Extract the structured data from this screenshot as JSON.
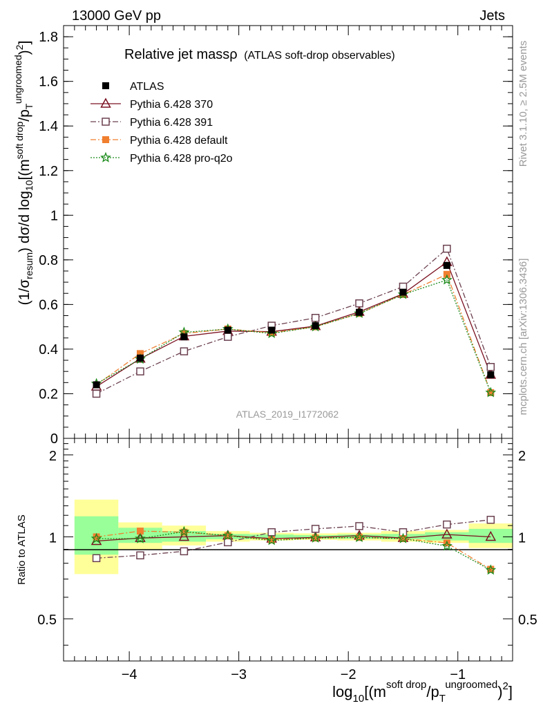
{
  "header": {
    "left": "13000 GeV pp",
    "right": "Jets"
  },
  "side_text": {
    "rivet": "Rivet 3.1.10, ≥ 2.5M events",
    "mcplots": "mcplots.cern.ch [arXiv:1306.3436]"
  },
  "chart_data": [
    {
      "type": "line",
      "title": "Relative jet massρ",
      "subtitle": "(ATLAS soft-drop observables)",
      "watermark": "ATLAS_2019_I1772062",
      "ylabel": "(1/σresum) dσ/d log10[(m soft drop/pT ungroomed)2]",
      "ylim": [
        0,
        1.85
      ],
      "yticks": [
        "0",
        "0.2",
        "0.4",
        "0.6",
        "0.8",
        "1",
        "1.2",
        "1.4",
        "1.6",
        "1.8"
      ],
      "xlim": [
        -4.6,
        -0.5
      ],
      "x": [
        -4.3,
        -3.9,
        -3.5,
        -3.1,
        -2.7,
        -2.3,
        -1.9,
        -1.5,
        -1.1,
        -0.7
      ],
      "legend_placement": "top-left",
      "series": [
        {
          "name": "ATLAS",
          "color": "#000000",
          "marker": "filled-square",
          "values": [
            0.24,
            0.36,
            0.455,
            0.485,
            0.485,
            0.505,
            0.565,
            0.655,
            0.775,
            0.285
          ]
        },
        {
          "name": "Pythia 6.428 370",
          "color": "#7a1020",
          "marker": "open-triangle",
          "dash": "solid",
          "values": [
            0.232,
            0.357,
            0.457,
            0.481,
            0.478,
            0.503,
            0.567,
            0.648,
            0.79,
            0.285
          ]
        },
        {
          "name": "Pythia 6.428 391",
          "color": "#6b4050",
          "marker": "open-square",
          "dash": "dashdot",
          "values": [
            0.2,
            0.3,
            0.39,
            0.455,
            0.505,
            0.54,
            0.605,
            0.68,
            0.85,
            0.32
          ]
        },
        {
          "name": "Pythia 6.428 default",
          "color": "#f07f2f",
          "marker": "filled-square",
          "dash": "dashdot",
          "values": [
            0.24,
            0.38,
            0.47,
            0.49,
            0.473,
            0.5,
            0.56,
            0.645,
            0.735,
            0.205
          ]
        },
        {
          "name": "Pythia 6.428 pro-q2o",
          "color": "#1a8a1a",
          "marker": "star",
          "dash": "dotted",
          "values": [
            0.245,
            0.355,
            0.475,
            0.49,
            0.47,
            0.5,
            0.56,
            0.645,
            0.71,
            0.205
          ]
        }
      ]
    },
    {
      "type": "line",
      "ylabel": "Ratio to ATLAS",
      "ylim": [
        0.35,
        2.3
      ],
      "yscale": "log",
      "yticks": [
        "0.5",
        "1",
        "2"
      ],
      "xlabel": "log10[(m soft drop/pT ungroomed)2]",
      "xticks": [
        "−4",
        "−3",
        "−2",
        "−1"
      ],
      "xlim": [
        -4.6,
        -0.5
      ],
      "bands": {
        "edges": [
          -4.5,
          -4.1,
          -3.7,
          -3.3,
          -2.9,
          -2.5,
          -2.1,
          -1.7,
          -1.3,
          -0.9,
          -0.5
        ],
        "outer": [
          [
            0.73,
            1.37
          ],
          [
            0.9,
            1.13
          ],
          [
            0.93,
            1.1
          ],
          [
            0.96,
            1.05
          ],
          [
            0.97,
            1.035
          ],
          [
            0.975,
            1.03
          ],
          [
            0.97,
            1.035
          ],
          [
            0.96,
            1.05
          ],
          [
            0.95,
            1.06
          ],
          [
            0.91,
            1.12
          ]
        ],
        "inner": [
          [
            0.86,
            1.19
          ],
          [
            0.95,
            1.08
          ],
          [
            0.96,
            1.05
          ],
          [
            0.98,
            1.025
          ],
          [
            0.985,
            1.02
          ],
          [
            0.985,
            1.015
          ],
          [
            0.985,
            1.02
          ],
          [
            0.98,
            1.025
          ],
          [
            0.97,
            1.04
          ],
          [
            0.95,
            1.07
          ]
        ],
        "outer_color": "#ffff99",
        "inner_color": "#99ff99"
      },
      "x": [
        -4.3,
        -3.9,
        -3.5,
        -3.1,
        -2.7,
        -2.3,
        -1.9,
        -1.5,
        -1.1,
        -0.7
      ],
      "series": [
        {
          "name": "Pythia 6.428 370",
          "color": "#7a1020",
          "marker": "open-triangle",
          "dash": "solid",
          "values": [
            0.965,
            0.99,
            1.0,
            1.01,
            0.985,
            0.995,
            1.01,
            0.99,
            1.02,
            1.0
          ]
        },
        {
          "name": "Pythia 6.428 391",
          "color": "#6b4050",
          "marker": "open-square",
          "dash": "dashdot",
          "values": [
            0.835,
            0.855,
            0.885,
            0.955,
            1.04,
            1.07,
            1.095,
            1.04,
            1.11,
            1.155
          ]
        },
        {
          "name": "Pythia 6.428 default",
          "color": "#f07f2f",
          "marker": "filled-square",
          "dash": "dashdot",
          "values": [
            1.0,
            1.05,
            1.04,
            1.01,
            0.975,
            0.99,
            0.995,
            0.985,
            0.95,
            0.76
          ]
        },
        {
          "name": "Pythia 6.428 pro-q2o",
          "color": "#1a8a1a",
          "marker": "star",
          "dash": "dotted",
          "values": [
            0.985,
            0.985,
            1.045,
            1.01,
            0.97,
            0.99,
            0.995,
            0.985,
            0.925,
            0.755
          ]
        }
      ]
    }
  ]
}
